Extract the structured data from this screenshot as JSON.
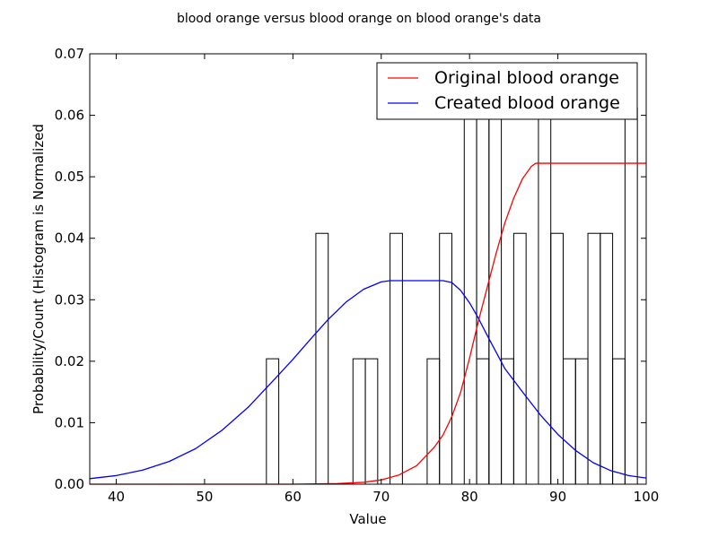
{
  "chart_data": {
    "type": "histogram_with_lines",
    "title": "blood orange versus blood orange on blood orange's data",
    "xlabel": "Value",
    "ylabel": "Probability/Count (Histogram is Normalized",
    "xlim": [
      37,
      100
    ],
    "ylim": [
      0,
      0.07
    ],
    "xticks": [
      "40",
      "50",
      "60",
      "70",
      "80",
      "90",
      "100"
    ],
    "yticks": [
      "0.00",
      "0.01",
      "0.02",
      "0.03",
      "0.04",
      "0.05",
      "0.06",
      "0.07"
    ],
    "histogram": {
      "bar_width": 1.4,
      "bars": [
        {
          "x": 57.0,
          "value": 0.0204
        },
        {
          "x": 62.6,
          "value": 0.0408
        },
        {
          "x": 66.8,
          "value": 0.0204
        },
        {
          "x": 68.2,
          "value": 0.0204
        },
        {
          "x": 71.0,
          "value": 0.0408
        },
        {
          "x": 75.2,
          "value": 0.0204
        },
        {
          "x": 76.6,
          "value": 0.0408
        },
        {
          "x": 79.4,
          "value": 0.0612
        },
        {
          "x": 80.8,
          "value": 0.0204
        },
        {
          "x": 80.8,
          "value": 0.0612
        },
        {
          "x": 82.2,
          "value": 0.0612
        },
        {
          "x": 83.6,
          "value": 0.0204
        },
        {
          "x": 85.0,
          "value": 0.0408
        },
        {
          "x": 87.8,
          "value": 0.0612
        },
        {
          "x": 89.2,
          "value": 0.0408
        },
        {
          "x": 90.6,
          "value": 0.0204
        },
        {
          "x": 92.0,
          "value": 0.0204
        },
        {
          "x": 93.4,
          "value": 0.0408
        },
        {
          "x": 94.8,
          "value": 0.0408
        },
        {
          "x": 96.2,
          "value": 0.0204
        },
        {
          "x": 97.6,
          "value": 0.0612
        }
      ]
    },
    "series": [
      {
        "name": "Original blood orange",
        "color": "#ff0000",
        "points": [
          [
            37,
            0.0
          ],
          [
            60,
            0.0
          ],
          [
            65,
            0.0001
          ],
          [
            68,
            0.0003
          ],
          [
            70,
            0.0007
          ],
          [
            72,
            0.0015
          ],
          [
            74,
            0.003
          ],
          [
            76,
            0.006
          ],
          [
            77,
            0.008
          ],
          [
            78,
            0.011
          ],
          [
            79,
            0.015
          ],
          [
            80,
            0.0205
          ],
          [
            81,
            0.0265
          ],
          [
            82,
            0.032
          ],
          [
            83,
            0.0375
          ],
          [
            84,
            0.0425
          ],
          [
            85,
            0.0465
          ],
          [
            86,
            0.0497
          ],
          [
            87,
            0.0517
          ],
          [
            87.5,
            0.0522
          ],
          [
            88,
            0.0522
          ],
          [
            100,
            0.0522
          ]
        ]
      },
      {
        "name": "Created blood orange",
        "color": "#0000ff",
        "points": [
          [
            37,
            0.0009
          ],
          [
            40,
            0.0014
          ],
          [
            43,
            0.0023
          ],
          [
            46,
            0.0037
          ],
          [
            49,
            0.0058
          ],
          [
            52,
            0.0088
          ],
          [
            55,
            0.0126
          ],
          [
            58,
            0.0172
          ],
          [
            60,
            0.0203
          ],
          [
            62,
            0.0236
          ],
          [
            64,
            0.0268
          ],
          [
            66,
            0.0296
          ],
          [
            68,
            0.0317
          ],
          [
            70,
            0.0329
          ],
          [
            71,
            0.0331
          ],
          [
            77,
            0.0331
          ],
          [
            78,
            0.0328
          ],
          [
            79,
            0.0315
          ],
          [
            80,
            0.0295
          ],
          [
            81,
            0.027
          ],
          [
            82,
            0.0242
          ],
          [
            83,
            0.0215
          ],
          [
            84,
            0.0188
          ],
          [
            86,
            0.015
          ],
          [
            88,
            0.0113
          ],
          [
            90,
            0.0081
          ],
          [
            92,
            0.0055
          ],
          [
            94,
            0.0035
          ],
          [
            96,
            0.0022
          ],
          [
            98,
            0.0014
          ],
          [
            100,
            0.001
          ]
        ]
      }
    ],
    "legend": {
      "placement": "top-right",
      "entries": [
        "Original blood orange",
        "Created blood orange"
      ]
    },
    "grid": false
  }
}
